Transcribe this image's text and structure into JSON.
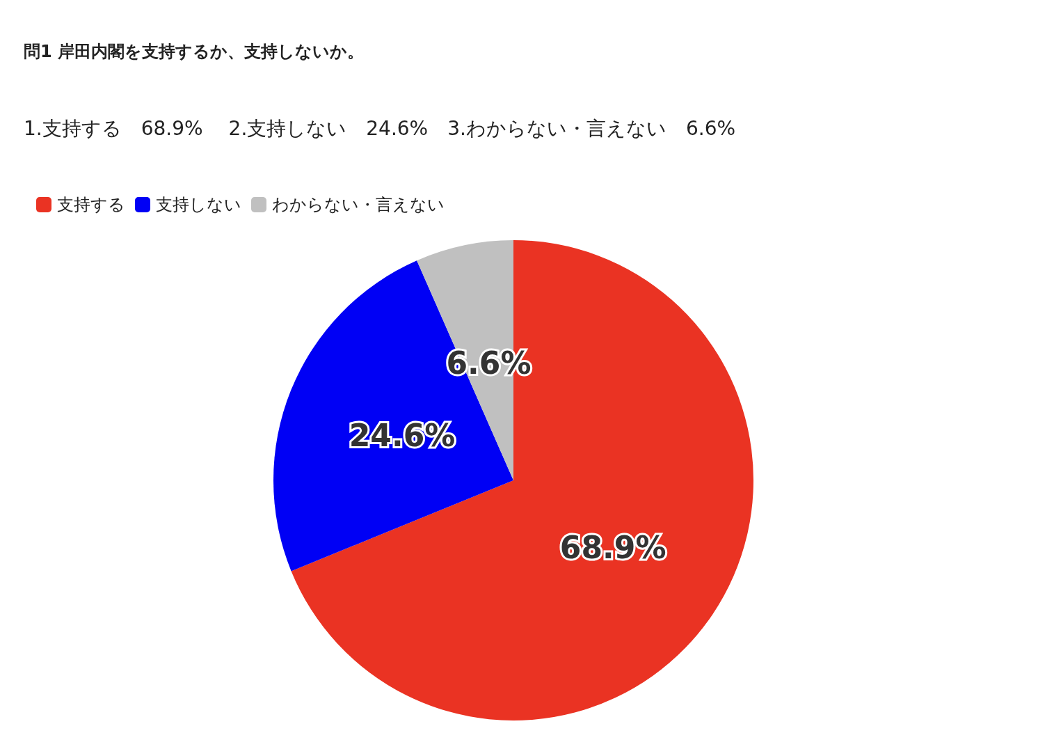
{
  "chart_data": {
    "type": "pie",
    "title": "問1 岸田内閣を支持するか、支持しないか。",
    "subtitle": "1.支持する　68.9%　 2.支持しない　24.6%　3.わからない・言えない　6.6%",
    "categories": [
      "支持する",
      "支持しない",
      "わからない・言えない"
    ],
    "values": [
      68.9,
      24.6,
      6.6
    ],
    "colors": [
      "#ea3323",
      "#0000f5",
      "#c0c0c0"
    ],
    "value_labels": [
      "68.9%",
      "24.6%",
      "6.6%"
    ],
    "legend": "top left"
  }
}
